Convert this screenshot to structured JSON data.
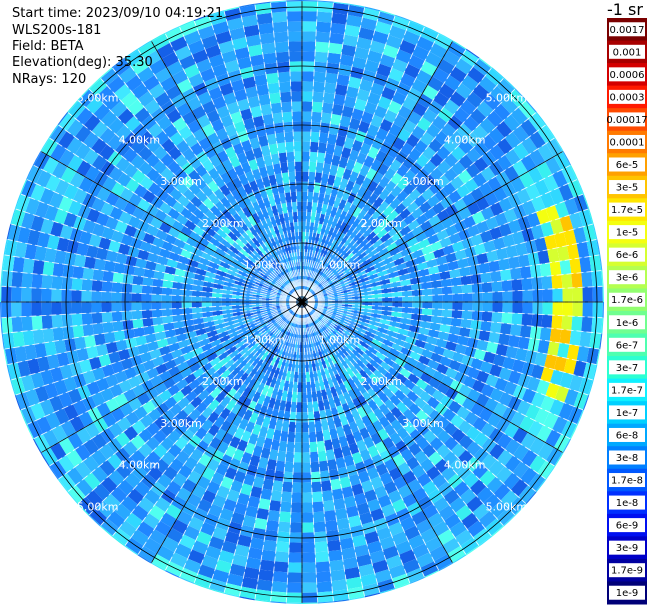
{
  "header": {
    "start_time": "Start time: 2023/09/10 04:19:21",
    "instrument": "WLS200s-181",
    "field": "Field: BETA",
    "elevation": "Elevation(deg): 35.30",
    "nrays": "NRays: 120"
  },
  "colorbar": {
    "unit_label": "-1 sr",
    "labels": [
      "0.0017",
      "0.001",
      "0.0006",
      "0.0003",
      "0.00017",
      "0.0001",
      "6e-5",
      "3e-5",
      "1.7e-5",
      "1e-5",
      "6e-6",
      "3e-6",
      "1.7e-6",
      "1e-6",
      "6e-7",
      "3e-7",
      "1.7e-7",
      "1e-7",
      "6e-8",
      "3e-8",
      "1.7e-8",
      "1e-8",
      "6e-9",
      "3e-9",
      "1.7e-9",
      "1e-9"
    ],
    "colors": [
      "#7a0000",
      "#a80000",
      "#d40000",
      "#ff1a00",
      "#ff4a00",
      "#ff7a00",
      "#ffa000",
      "#ffc400",
      "#ffe600",
      "#f4ff10",
      "#d6ff30",
      "#b4ff50",
      "#92ff70",
      "#70ff90",
      "#4effb0",
      "#2cffd2",
      "#10f0ff",
      "#00d0ff",
      "#00a8ff",
      "#0080ff",
      "#0058ff",
      "#0030ff",
      "#0010f0",
      "#0000c8",
      "#0000a0",
      "#000078"
    ]
  },
  "chart_data": {
    "type": "heatmap",
    "projection": "polar PPI",
    "field": "BETA",
    "n_rays": 120,
    "range_rings_km": [
      1.0,
      2.0,
      3.0,
      4.0,
      5.0
    ],
    "range_labels": [
      "1.00km",
      "2.00km",
      "3.00km",
      "4.00km",
      "5.00km"
    ],
    "max_range_km": 5.1,
    "colorscale": "log",
    "value_range": [
      1e-09,
      0.0017
    ],
    "grid": true
  }
}
